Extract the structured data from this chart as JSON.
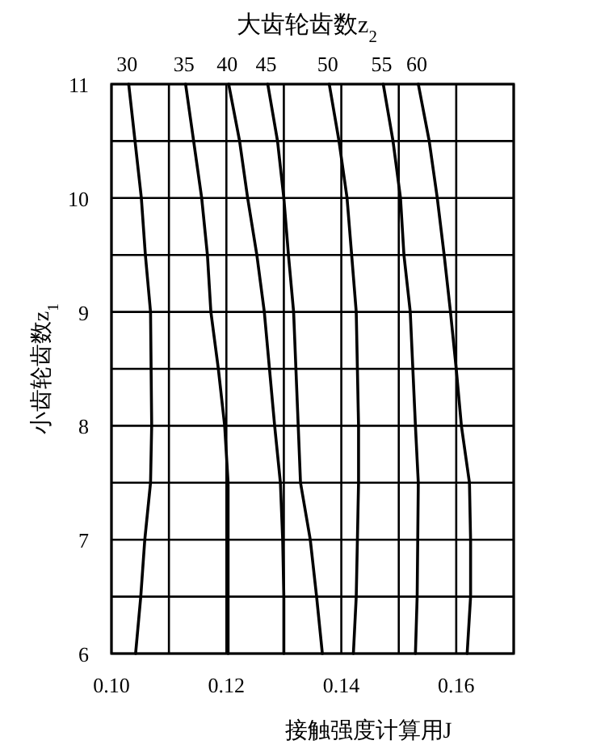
{
  "chart_data": {
    "type": "line",
    "title": "大齿轮齿数z$_{2}$",
    "xlabel": "接触强度计算用J",
    "ylabel": "小齿轮齿数z$_{1}$",
    "xlim": [
      0.1,
      0.17
    ],
    "ylim": [
      6,
      11
    ],
    "xticks": [
      {
        "value": 0.1,
        "label": "0.10"
      },
      {
        "value": 0.11,
        "label": null
      },
      {
        "value": 0.12,
        "label": "0.12"
      },
      {
        "value": 0.13,
        "label": null
      },
      {
        "value": 0.14,
        "label": "0.14"
      },
      {
        "value": 0.15,
        "label": null
      },
      {
        "value": 0.16,
        "label": "0.16"
      },
      {
        "value": 0.17,
        "label": null
      }
    ],
    "yticks": [
      6,
      {
        "value": 6.5,
        "label": null
      },
      7,
      {
        "value": 7.5,
        "label": null
      },
      8,
      {
        "value": 8.5,
        "label": null
      },
      9,
      {
        "value": 9.5,
        "label": null
      },
      10,
      {
        "value": 10.5,
        "label": null
      },
      11
    ],
    "grid": true,
    "series": [
      {
        "name": "30",
        "color": "#000000",
        "x": [
          0.1042,
          0.1051,
          0.1058,
          0.1068,
          0.107,
          0.1068,
          0.1059,
          0.1052,
          0.103
        ],
        "values": [
          6,
          6.5,
          7,
          7.5,
          8,
          9,
          9.5,
          10,
          11
        ]
      },
      {
        "name": "35",
        "color": "#000000",
        "x": [
          0.1203,
          0.1203,
          0.1203,
          0.1197,
          0.1186,
          0.1173,
          0.1167,
          0.1157,
          0.1129
        ],
        "values": [
          6,
          7,
          7.5,
          8,
          8.5,
          9,
          9.5,
          10,
          11
        ]
      },
      {
        "name": "40",
        "color": "#000000",
        "x": [
          0.13,
          0.13,
          0.1298,
          0.1294,
          0.1284,
          0.1275,
          0.1266,
          0.1253,
          0.1237,
          0.1223,
          0.1204
        ],
        "values": [
          6,
          6.5,
          7,
          7.5,
          8,
          8.5,
          9,
          9.5,
          10,
          10.5,
          11
        ]
      },
      {
        "name": "45",
        "color": "#000000",
        "x": [
          0.1367,
          0.1357,
          0.1346,
          0.1329,
          0.1325,
          0.1317,
          0.1308,
          0.13,
          0.1289,
          0.1272
        ],
        "values": [
          6,
          6.5,
          7,
          7.5,
          8,
          9,
          9.5,
          10,
          10.5,
          11
        ]
      },
      {
        "name": "50",
        "color": "#000000",
        "x": [
          0.1421,
          0.1426,
          0.1428,
          0.143,
          0.143,
          0.1426,
          0.1418,
          0.141,
          0.1396,
          0.1379
        ],
        "values": [
          6,
          6.5,
          7,
          7.5,
          8,
          9,
          9.5,
          10,
          10.5,
          11
        ]
      },
      {
        "name": "55",
        "color": "#000000",
        "x": [
          0.1529,
          0.1532,
          0.1533,
          0.1534,
          0.1529,
          0.152,
          0.1509,
          0.1503,
          0.149,
          0.1473
        ],
        "values": [
          6,
          6.5,
          7,
          7.5,
          8,
          9,
          9.5,
          10,
          10.5,
          11
        ]
      },
      {
        "name": "60",
        "color": "#000000",
        "x": [
          0.1619,
          0.1625,
          0.1625,
          0.1623,
          0.1609,
          0.16,
          0.159,
          0.1579,
          0.1567,
          0.1553,
          0.1534
        ],
        "values": [
          6,
          6.5,
          7,
          7.5,
          8,
          8.5,
          9,
          9.5,
          10,
          10.5,
          11
        ]
      }
    ]
  }
}
